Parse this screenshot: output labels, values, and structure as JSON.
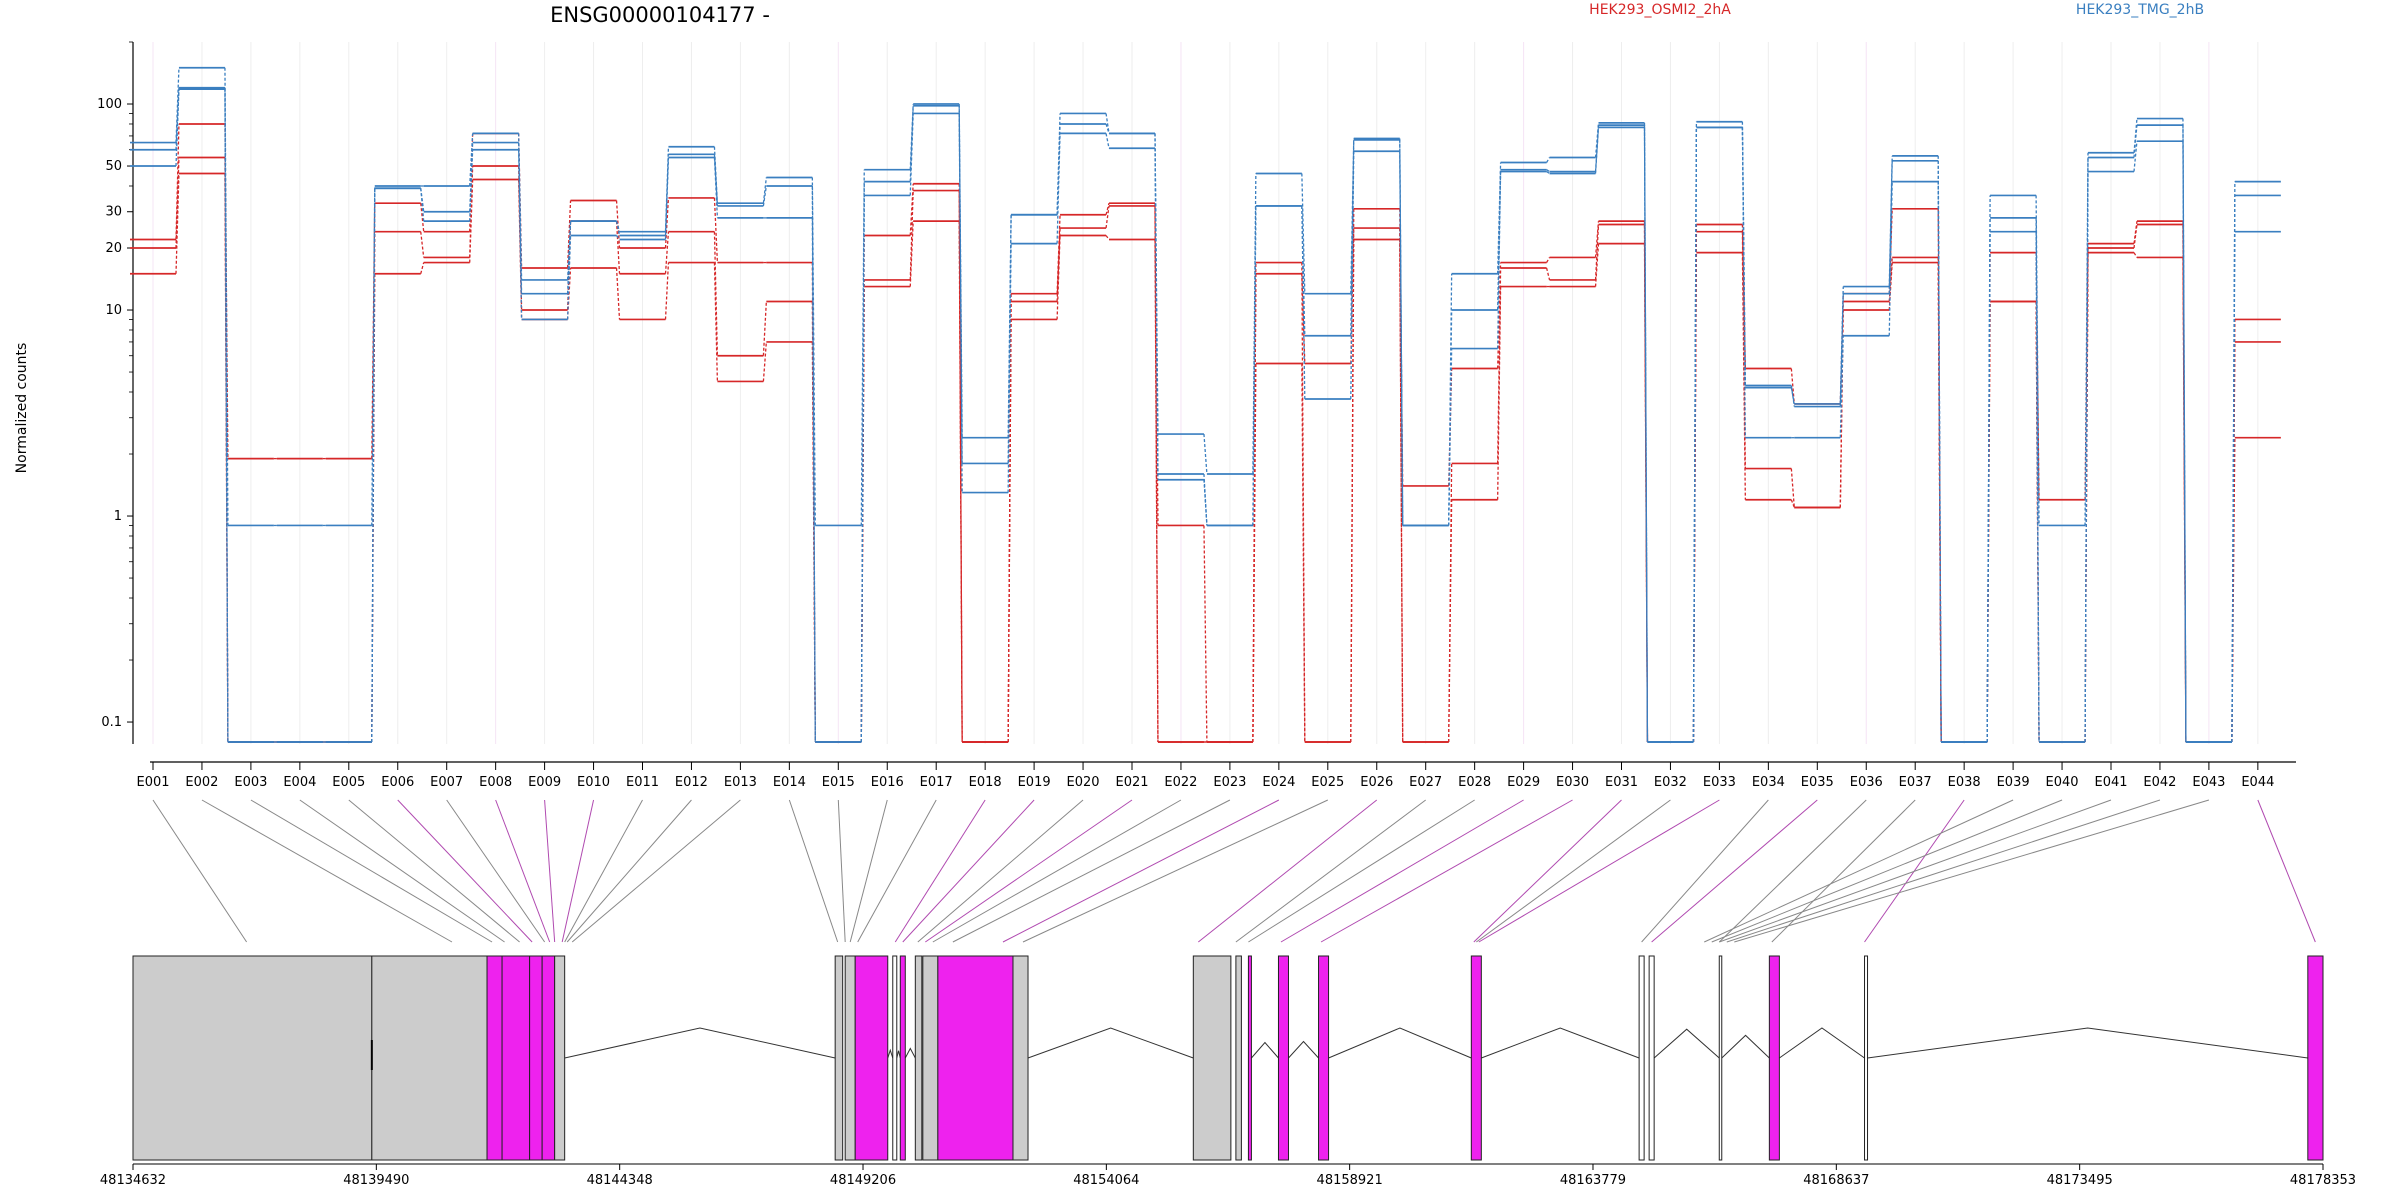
{
  "chart_data": {
    "type": "line",
    "title": "ENSG00000104177 -",
    "ylabel": "Normalized counts",
    "y_scale": "log",
    "ylim": [
      0.08,
      200
    ],
    "y_ticks": [
      {
        "value": 0.1,
        "label": "0.1"
      },
      {
        "value": 1,
        "label": "1"
      },
      {
        "value": 10,
        "label": "10"
      },
      {
        "value": 20,
        "label": "20"
      },
      {
        "value": 30,
        "label": "30"
      },
      {
        "value": 50,
        "label": "50"
      },
      {
        "value": 100,
        "label": "100"
      }
    ],
    "categories": [
      "E001",
      "E002",
      "E003",
      "E004",
      "E005",
      "E006",
      "E007",
      "E008",
      "E009",
      "E010",
      "E011",
      "E012",
      "E013",
      "E014",
      "E015",
      "E016",
      "E017",
      "E018",
      "E019",
      "E020",
      "E021",
      "E022",
      "E023",
      "E024",
      "E025",
      "E026",
      "E027",
      "E028",
      "E029",
      "E030",
      "E031",
      "E032",
      "E033",
      "E034",
      "E035",
      "E036",
      "E037",
      "E038",
      "E039",
      "E040",
      "E041",
      "E042",
      "E043",
      "E044"
    ],
    "legend": [
      {
        "name": "HEK293_OSMI2_2hA",
        "color": "#d62728"
      },
      {
        "name": "HEK293_TMG_2hB",
        "color": "#3a7fc0"
      }
    ],
    "series": [
      {
        "group": "HEK293_OSMI2_2hA",
        "color": "#d62728",
        "values": [
          22,
          80,
          1.9,
          1.9,
          1.9,
          33,
          24,
          72,
          16,
          34,
          20,
          35,
          17,
          17,
          0.08,
          23,
          41,
          0.08,
          12,
          29,
          33,
          0.9,
          0.08,
          17,
          0.08,
          31,
          1.4,
          5.2,
          17,
          18,
          27,
          0.08,
          26,
          5.2,
          3.5,
          12,
          31,
          0.08,
          19,
          1.2,
          21,
          27,
          0.08,
          9
        ]
      },
      {
        "group": "HEK293_OSMI2_2hA",
        "color": "#d62728",
        "values": [
          20,
          55,
          0.08,
          0.08,
          0.08,
          24,
          18,
          50,
          10,
          27,
          15,
          24,
          6,
          11,
          0.08,
          14,
          38,
          0.08,
          11,
          25,
          32,
          0.08,
          0.08,
          15,
          5.5,
          25,
          0.08,
          1.8,
          16,
          14,
          26,
          0.08,
          24,
          1.7,
          1.1,
          11,
          18,
          0.08,
          11,
          0.08,
          20,
          26,
          0.08,
          7
        ]
      },
      {
        "group": "HEK293_OSMI2_2hA",
        "color": "#d62728",
        "values": [
          15,
          46,
          0.08,
          0.08,
          0.08,
          15,
          17,
          43,
          9,
          16,
          9,
          17,
          4.5,
          7,
          0.08,
          13,
          27,
          0.08,
          9,
          23,
          22,
          0.08,
          0.08,
          5.5,
          0.08,
          22,
          0.08,
          1.2,
          13,
          13,
          21,
          0.08,
          19,
          1.2,
          1.1,
          10,
          17,
          0.08,
          11,
          0.08,
          19,
          18,
          0.08,
          2.4
        ]
      },
      {
        "group": "HEK293_TMG_2hB",
        "color": "#3a7fc0",
        "values": [
          65,
          150,
          0.9,
          0.9,
          0.9,
          40,
          40,
          72,
          14,
          27,
          24,
          62,
          33,
          44,
          0.9,
          48,
          100,
          2.4,
          29,
          90,
          72,
          2.5,
          1.6,
          46,
          12,
          68,
          0.9,
          15,
          52,
          55,
          81,
          0.08,
          82,
          4.2,
          3.5,
          13,
          56,
          0.08,
          36,
          0.9,
          58,
          85,
          0.08,
          42
        ]
      },
      {
        "group": "HEK293_TMG_2hB",
        "color": "#3a7fc0",
        "values": [
          60,
          120,
          0.08,
          0.08,
          0.08,
          39,
          30,
          65,
          12,
          27,
          23,
          57,
          32,
          40,
          0.08,
          42,
          98,
          1.8,
          29,
          80,
          72,
          1.5,
          0.9,
          32,
          7.5,
          67,
          0.9,
          10,
          48,
          47,
          79,
          0.08,
          77,
          4.3,
          3.4,
          12,
          53,
          0.08,
          28,
          0.08,
          55,
          79,
          0.08,
          36
        ]
      },
      {
        "group": "HEK293_TMG_2hB",
        "color": "#3a7fc0",
        "values": [
          50,
          118,
          0.08,
          0.08,
          0.08,
          39,
          27,
          60,
          9,
          23,
          22,
          55,
          28,
          28,
          0.08,
          36,
          90,
          1.3,
          21,
          72,
          61,
          1.6,
          0.9,
          32,
          3.7,
          59,
          0.9,
          6.5,
          47,
          46,
          77,
          0.08,
          77,
          2.4,
          2.4,
          7.5,
          42,
          0.08,
          24,
          0.08,
          47,
          66,
          0.08,
          24
        ]
      }
    ],
    "gene_model": {
      "coordinate_labels": [
        "48134632",
        "48139490",
        "48144348",
        "48149206",
        "48154064",
        "48158921",
        "48163779",
        "48168637",
        "48173495",
        "48178353"
      ],
      "range": [
        48134632,
        48178353
      ]
    }
  }
}
